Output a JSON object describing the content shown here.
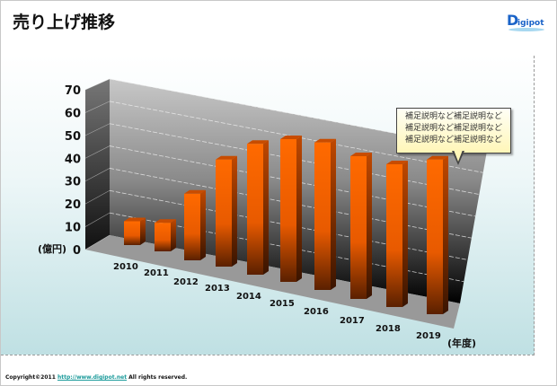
{
  "header": {
    "title": "売り上げ推移",
    "logo_text": "Digipot"
  },
  "callout": {
    "lines": [
      "補足説明など補足説明など",
      "補足説明など補足説明など",
      "補足説明など補足説明など"
    ]
  },
  "footer": {
    "prefix": "Copyright©2011 ",
    "link": "http://www.digipot.net",
    "suffix": " All rights reserved."
  },
  "colors": {
    "bar": "#ff6600",
    "bar_dark": "#7a2a00",
    "bar_side": "#b84400"
  },
  "chart_data": {
    "type": "bar",
    "title": "",
    "categories": [
      "2010",
      "2011",
      "2012",
      "2013",
      "2014",
      "2015",
      "2016",
      "2017",
      "2018",
      "2019"
    ],
    "values": [
      10,
      12,
      28,
      45,
      55,
      60,
      62,
      60,
      60,
      65
    ],
    "xlabel": "(年度)",
    "ylabel": "(億円)",
    "yticks": [
      "0",
      "10",
      "20",
      "30",
      "40",
      "50",
      "60",
      "70"
    ],
    "ylim": [
      0,
      70
    ],
    "grid": true,
    "style": "3d-perspective"
  }
}
